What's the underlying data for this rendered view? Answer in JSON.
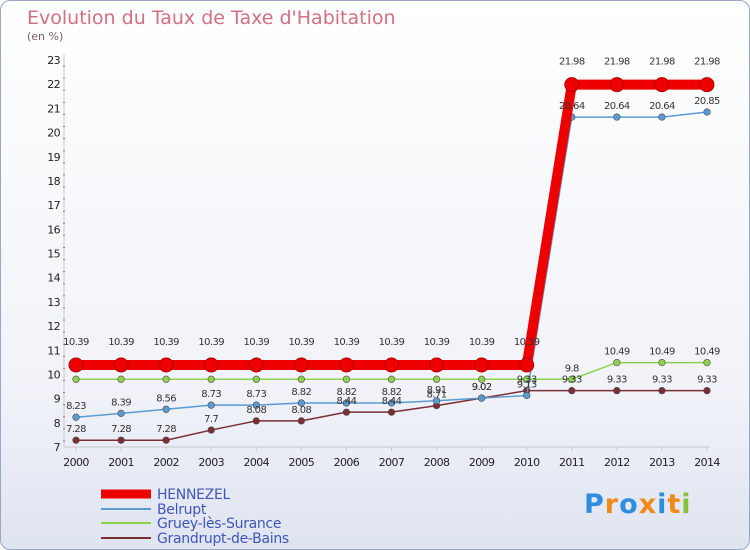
{
  "title": "Evolution du Taux de Taxe d'Habitation",
  "unit": "(en %)",
  "logo": {
    "text": "Proxiti",
    "letters": [
      "P",
      "r",
      "o",
      "x",
      "i",
      "t",
      "i"
    ],
    "colors": [
      "#2f8de0",
      "#f08a1a",
      "#2f8de0",
      "#f08a1a",
      "#2f8de0",
      "#f08a1a",
      "#86c23a"
    ]
  },
  "chart_data": {
    "type": "line",
    "x": [
      2000,
      2001,
      2002,
      2003,
      2004,
      2005,
      2006,
      2007,
      2008,
      2009,
      2010,
      2011,
      2012,
      2013,
      2014
    ],
    "ylim": [
      7,
      23
    ],
    "yticks": [
      7,
      8,
      9,
      10,
      11,
      12,
      13,
      14,
      15,
      16,
      17,
      18,
      19,
      20,
      21,
      22,
      23
    ],
    "grid": false,
    "legend_position": "bottom-left",
    "series": [
      {
        "name": "HENNEZEL",
        "color": "#ee0000",
        "values": [
          10.39,
          10.39,
          10.39,
          10.39,
          10.39,
          10.39,
          10.39,
          10.39,
          10.39,
          10.39,
          10.39,
          21.98,
          21.98,
          21.98,
          21.98
        ],
        "labels": [
          "10.39",
          "10.39",
          "10.39",
          "10.39",
          "10.39",
          "10.39",
          "10.39",
          "10.39",
          "10.39",
          "10.39",
          "10.39",
          "21.98",
          "21.98",
          "21.98",
          "21.98"
        ]
      },
      {
        "name": "Belrupt",
        "color": "#5b9bd0",
        "values": [
          8.23,
          8.39,
          8.56,
          8.73,
          8.73,
          8.82,
          8.82,
          8.82,
          8.91,
          9.02,
          9.13,
          20.64,
          20.64,
          20.64,
          20.85
        ],
        "labels": [
          "8.23",
          "8.39",
          "8.56",
          "8.73",
          "8.73",
          "8.82",
          "8.82",
          "8.82",
          "8.91",
          "9.02",
          "9.13",
          "20.64",
          "20.64",
          "20.64",
          "20.85"
        ]
      },
      {
        "name": "Gruey-lès-Surance",
        "color": "#8fd14f",
        "values": [
          9.8,
          9.8,
          9.8,
          9.8,
          9.8,
          9.8,
          9.8,
          9.8,
          9.8,
          9.8,
          9.8,
          9.8,
          10.49,
          10.49,
          10.49
        ],
        "labels": [
          "",
          "",
          "",
          "",
          "",
          "",
          "",
          "",
          "",
          "",
          "",
          "9.8",
          "10.49",
          "10.49",
          "10.49"
        ]
      },
      {
        "name": "Grandrupt-de-Bains",
        "color": "#7b2e34",
        "values": [
          7.28,
          7.28,
          7.28,
          7.7,
          8.08,
          8.08,
          8.44,
          8.44,
          8.71,
          9.02,
          9.33,
          9.33,
          9.33,
          9.33,
          9.33
        ],
        "labels": [
          "7.28",
          "7.28",
          "7.28",
          "7.7",
          "8.08",
          "8.08",
          "8.44",
          "8.44",
          "8.71",
          "9.02",
          "9.33",
          "9.33",
          "9.33",
          "9.33",
          "9.33"
        ]
      }
    ]
  }
}
